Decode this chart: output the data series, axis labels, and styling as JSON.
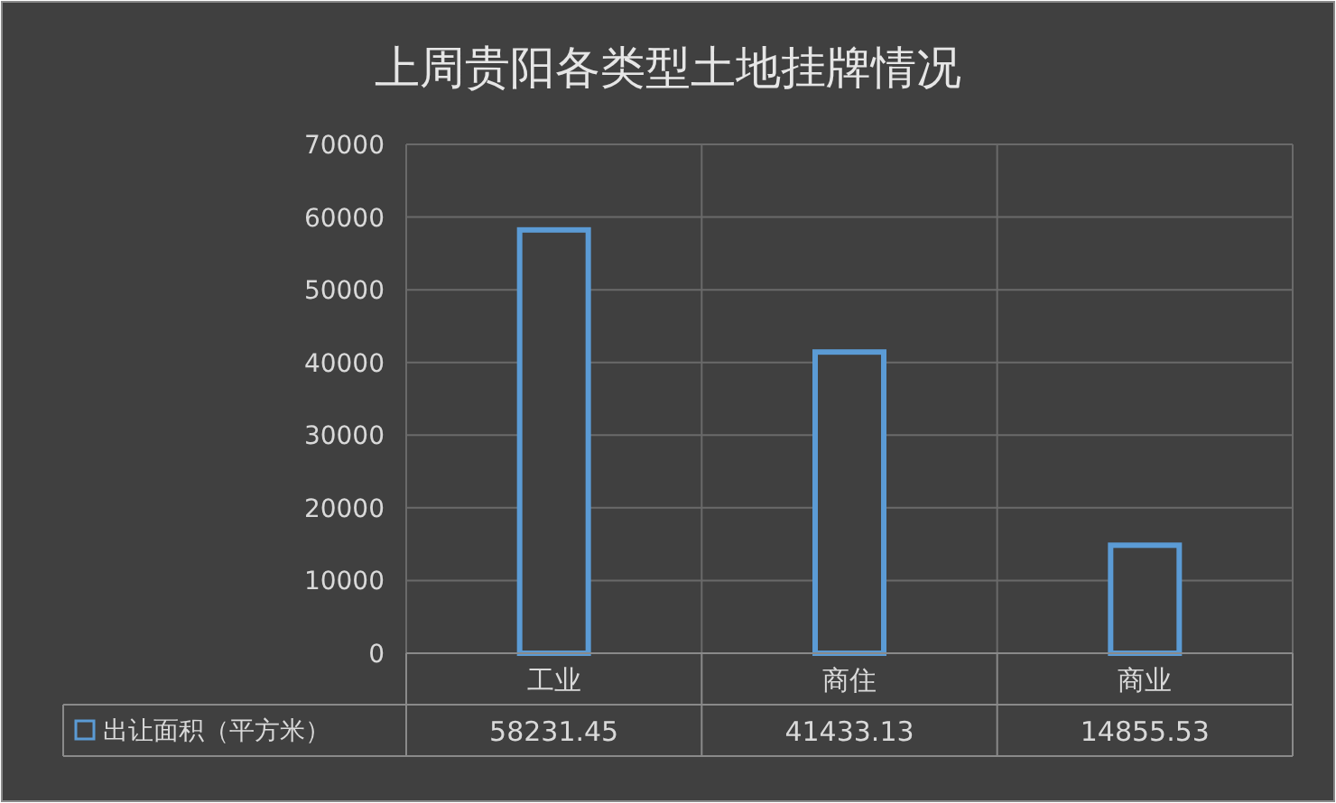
{
  "chart_data": {
    "type": "bar",
    "title": "上周贵阳各类型土地挂牌情况",
    "categories": [
      "工业",
      "商住",
      "商业"
    ],
    "series": [
      {
        "name": "出让面积（平方米）",
        "color": "#5b9bd5",
        "values": [
          58231.45,
          41433.13,
          14855.53
        ]
      }
    ],
    "ylim": [
      0,
      70000
    ],
    "yticks": [
      0,
      10000,
      20000,
      30000,
      40000,
      50000,
      60000,
      70000
    ],
    "grid": true,
    "legend": "bottom left",
    "data_labels": true
  }
}
